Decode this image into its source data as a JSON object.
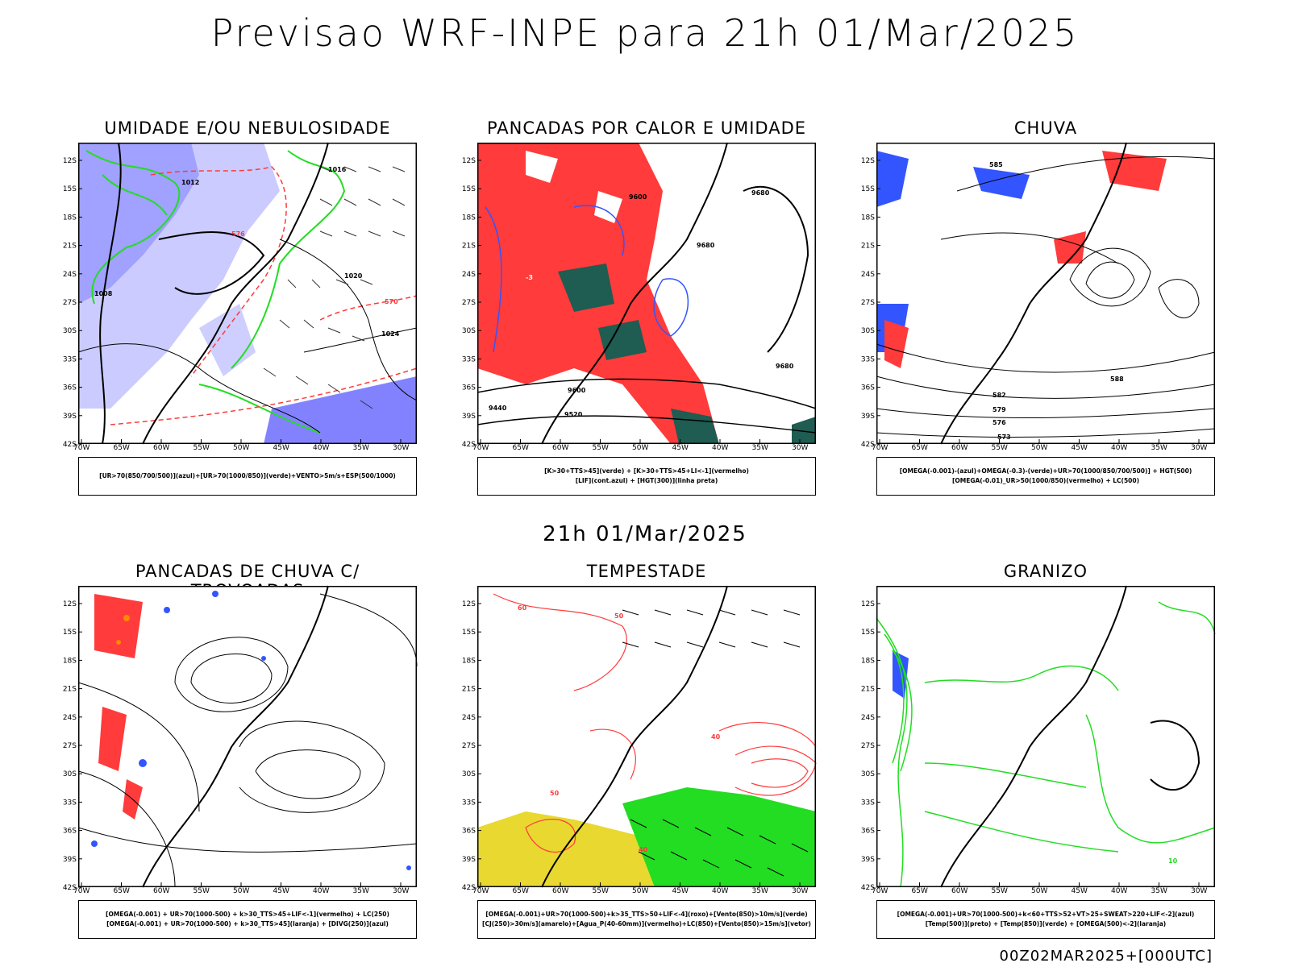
{
  "title": "Previsao WRF-INPE  para 21h 01/Mar/2025",
  "subtitle": "21h 01/Mar/2025",
  "run_stamp": "00Z02MAR2025+[000UTC]",
  "axes": {
    "lat_labels": [
      "12S",
      "15S",
      "18S",
      "21S",
      "24S",
      "27S",
      "30S",
      "33S",
      "36S",
      "39S",
      "42S"
    ],
    "lon_labels": [
      "70W",
      "65W",
      "60W",
      "55W",
      "50W",
      "45W",
      "40W",
      "35W",
      "30W"
    ]
  },
  "panels": [
    {
      "id": "umidade",
      "title": "UMIDADE E/OU NEBULOSIDADE",
      "legend": [
        "[UR>70(850/700/500)](azul)+[UR>70(1000/850)](verde)+VENTO>5m/s+ESP(500/1000)"
      ],
      "contour_labels": [
        "1016",
        "1012",
        "1020",
        "1024",
        "1008",
        "570",
        "576"
      ]
    },
    {
      "id": "pancadas_calor",
      "title": "PANCADAS POR CALOR E UMIDADE",
      "legend": [
        "[K>30+TTS>45](verde) + [K>30+TTS>45+LI<-1](vermelho)",
        "[LIF](cont.azul) + [HGT(300)](linha preta)"
      ],
      "contour_labels": [
        "9600",
        "9680",
        "9520",
        "9440",
        "-3"
      ]
    },
    {
      "id": "chuva",
      "title": "CHUVA",
      "legend": [
        "[OMEGA(-0.001)-(azul)+OMEGA(-0.3)-(verde)+UR>70(1000/850/700/500)] + HGT(500)",
        "[OMEGA(-0.01)_UR>50(1000/850)(vermelho) + LC(500)"
      ],
      "contour_labels": [
        "585",
        "588",
        "582",
        "579",
        "576",
        "573"
      ]
    },
    {
      "id": "trovoadas",
      "title": "PANCADAS DE CHUVA C/ TROVOADAS",
      "legend": [
        "[OMEGA(-0.001) + UR>70(1000-500) + k>30_TTS>45+LIF<-1](vermelho) + LC(250)",
        "[OMEGA(-0.001) + UR>70(1000-500) + k>30_TTS>45](laranja) + [DIVG(250)](azul)"
      ],
      "contour_labels": []
    },
    {
      "id": "tempestade",
      "title": "TEMPESTADE",
      "legend": [
        "[OMEGA(-0.001)+UR>70(1000-500)+k>35_TTS>50+LIF<-4](roxo)+[Vento(850)>10m/s](verde)",
        "[CJ(250)>30m/s](amarelo)+[Agua_P(40-60mm)](vermelho)+LC(850)+[Vento(850)>15m/s](vetor)"
      ],
      "contour_labels": [
        "60",
        "50",
        "40"
      ]
    },
    {
      "id": "granizo",
      "title": "GRANIZO",
      "legend": [
        "[OMEGA(-0.001)+UR>70(1000-500)+k<60+TTS>52+VT>25+SWEAT>220+LIF<-2](azul)",
        "[Temp(500)](preto) + [Temp(850)](verde) + [OMEGA(500)<-2](laranja)"
      ],
      "contour_labels": [
        "10"
      ]
    }
  ],
  "colors": {
    "red": "#ff3b3b",
    "green": "#22dd22",
    "blue": "#3355ff",
    "lightblue": "#b9b9ff",
    "darkgreen": "#1f5c52",
    "yellow": "#e8d830",
    "orange": "#ff8800"
  }
}
